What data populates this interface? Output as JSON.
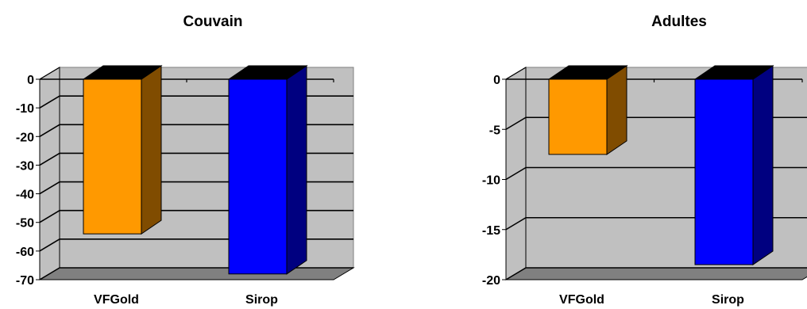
{
  "chart_data": [
    {
      "type": "bar",
      "title": "Couvain",
      "categories": [
        "VFGold",
        "Sirop"
      ],
      "values": [
        -54,
        -68
      ],
      "ylim": [
        -70,
        0
      ],
      "yticks": [
        0,
        -10,
        -20,
        -30,
        -40,
        -50,
        -60,
        -70
      ],
      "grid": true,
      "three_d": true,
      "colors": [
        "#FF9900",
        "#0000FF"
      ]
    },
    {
      "type": "bar",
      "title": "Adultes",
      "categories": [
        "VFGold",
        "Sirop"
      ],
      "values": [
        -7.5,
        -18.5
      ],
      "ylim": [
        -20,
        0
      ],
      "yticks": [
        0,
        -5,
        -10,
        -15,
        -20
      ],
      "grid": true,
      "three_d": true,
      "colors": [
        "#FF9900",
        "#0000FF"
      ]
    }
  ],
  "style": {
    "wall_color": "#C0C0C0",
    "floor_color": "#808080",
    "bar_top_color": "#000000",
    "series_side_colors": [
      "#804C00",
      "#000080"
    ]
  }
}
